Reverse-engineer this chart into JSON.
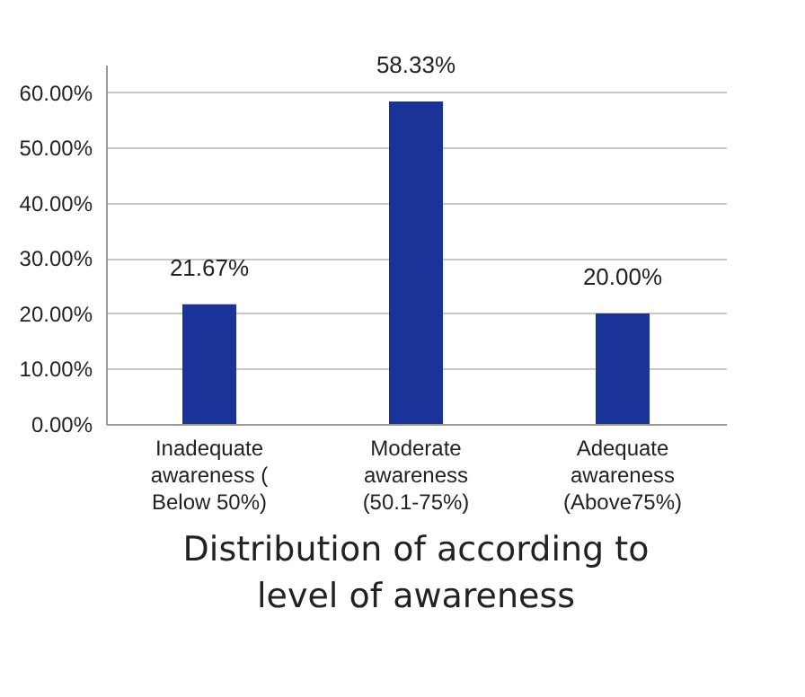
{
  "chart_data": {
    "type": "bar",
    "title": "Distribution of according to level of awareness",
    "categories": [
      "Inadequate awareness ( Below 50%)",
      "Moderate awareness (50.1-75%)",
      "Adequate awareness (Above75%)"
    ],
    "values": [
      21.67,
      58.33,
      20.0
    ],
    "value_labels": [
      "21.67%",
      "58.33%",
      "20.00%"
    ],
    "color": "#1a3399",
    "ylim": [
      0,
      65
    ],
    "yticks": [
      {
        "value": 0,
        "label": "0.00%"
      },
      {
        "value": 10,
        "label": "10.00%"
      },
      {
        "value": 20,
        "label": "20.00%"
      },
      {
        "value": 30,
        "label": "30.00%"
      },
      {
        "value": 40,
        "label": "40.00%"
      },
      {
        "value": 50,
        "label": "50.00%"
      },
      {
        "value": 60,
        "label": "60.00%"
      }
    ],
    "grid": "y"
  }
}
